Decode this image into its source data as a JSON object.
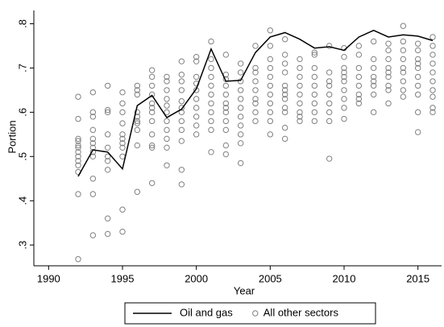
{
  "chart_data": {
    "type": "line",
    "xlabel": "Year",
    "ylabel": "Portion",
    "xlim": [
      1989,
      2016.6
    ],
    "ylim": [
      0.253,
      0.83
    ],
    "xticks": [
      1990,
      1995,
      2000,
      2005,
      2010,
      2015
    ],
    "yticks": [
      {
        "value": 0.3,
        "label": ".3"
      },
      {
        "value": 0.4,
        "label": ".4"
      },
      {
        "value": 0.5,
        "label": ".5"
      },
      {
        "value": 0.6,
        "label": ".6"
      },
      {
        "value": 0.7,
        "label": ".7"
      },
      {
        "value": 0.8,
        "label": ".8"
      }
    ],
    "series": [
      {
        "name": "Oil and gas",
        "type": "line",
        "color": "#000000",
        "x": [
          1992,
          1993,
          1994,
          1995,
          1996,
          1997,
          1998,
          1999,
          2000,
          2001,
          2002,
          2003,
          2004,
          2005,
          2006,
          2007,
          2008,
          2009,
          2010,
          2011,
          2012,
          2013,
          2014,
          2015,
          2016
        ],
        "values": [
          0.455,
          0.515,
          0.51,
          0.472,
          0.615,
          0.638,
          0.588,
          0.607,
          0.653,
          0.743,
          0.67,
          0.672,
          0.735,
          0.77,
          0.78,
          0.765,
          0.745,
          0.748,
          0.74,
          0.77,
          0.785,
          0.77,
          0.775,
          0.772,
          0.762
        ]
      },
      {
        "name": "All other sectors",
        "type": "scatter",
        "color": "#808080",
        "x": [
          1992,
          1992,
          1992,
          1992,
          1992,
          1992,
          1992,
          1992,
          1992,
          1992,
          1992,
          1992,
          1992,
          1993,
          1993,
          1993,
          1993,
          1993,
          1993,
          1993,
          1993,
          1993,
          1993,
          1993,
          1993,
          1994,
          1994,
          1994,
          1994,
          1994,
          1994,
          1994,
          1994,
          1994,
          1994,
          1995,
          1995,
          1995,
          1995,
          1995,
          1995,
          1995,
          1995,
          1995,
          1995,
          1995,
          1996,
          1996,
          1996,
          1996,
          1996,
          1996,
          1996,
          1996,
          1996,
          1996,
          1997,
          1997,
          1997,
          1997,
          1997,
          1997,
          1997,
          1997,
          1997,
          1997,
          1997,
          1997,
          1998,
          1998,
          1998,
          1998,
          1998,
          1998,
          1998,
          1998,
          1998,
          1998,
          1998,
          1999,
          1999,
          1999,
          1999,
          1999,
          1999,
          1999,
          1999,
          1999,
          1999,
          1999,
          1999,
          2000,
          2000,
          2000,
          2000,
          2000,
          2000,
          2000,
          2000,
          2000,
          2000,
          2001,
          2001,
          2001,
          2001,
          2001,
          2001,
          2001,
          2001,
          2001,
          2001,
          2001,
          2002,
          2002,
          2002,
          2002,
          2002,
          2002,
          2002,
          2002,
          2002,
          2002,
          2002,
          2002,
          2003,
          2003,
          2003,
          2003,
          2003,
          2003,
          2003,
          2003,
          2003,
          2003,
          2003,
          2004,
          2004,
          2004,
          2004,
          2004,
          2004,
          2004,
          2004,
          2004,
          2005,
          2005,
          2005,
          2005,
          2005,
          2005,
          2005,
          2005,
          2005,
          2005,
          2005,
          2006,
          2006,
          2006,
          2006,
          2006,
          2006,
          2006,
          2006,
          2006,
          2006,
          2006,
          2006,
          2007,
          2007,
          2007,
          2007,
          2007,
          2007,
          2007,
          2007,
          2007,
          2008,
          2008,
          2008,
          2008,
          2008,
          2008,
          2008,
          2008,
          2008,
          2009,
          2009,
          2009,
          2009,
          2009,
          2009,
          2009,
          2009,
          2009,
          2010,
          2010,
          2010,
          2010,
          2010,
          2010,
          2010,
          2010,
          2010,
          2010,
          2011,
          2011,
          2011,
          2011,
          2011,
          2011,
          2011,
          2011,
          2012,
          2012,
          2012,
          2012,
          2012,
          2012,
          2012,
          2012,
          2013,
          2013,
          2013,
          2013,
          2013,
          2013,
          2013,
          2013,
          2013,
          2014,
          2014,
          2014,
          2014,
          2014,
          2014,
          2014,
          2014,
          2014,
          2015,
          2015,
          2015,
          2015,
          2015,
          2015,
          2015,
          2015,
          2015,
          2015,
          2016,
          2016,
          2016,
          2016,
          2016,
          2016,
          2016,
          2016,
          2016,
          2016
        ],
        "values": [
          0.635,
          0.585,
          0.54,
          0.535,
          0.525,
          0.52,
          0.51,
          0.5,
          0.49,
          0.48,
          0.465,
          0.415,
          0.268,
          0.645,
          0.6,
          0.59,
          0.56,
          0.54,
          0.53,
          0.52,
          0.51,
          0.5,
          0.45,
          0.415,
          0.322,
          0.66,
          0.605,
          0.6,
          0.55,
          0.52,
          0.5,
          0.49,
          0.47,
          0.36,
          0.325,
          0.645,
          0.62,
          0.6,
          0.575,
          0.55,
          0.54,
          0.53,
          0.52,
          0.5,
          0.38,
          0.33,
          0.66,
          0.65,
          0.64,
          0.6,
          0.59,
          0.58,
          0.575,
          0.56,
          0.525,
          0.42,
          0.695,
          0.68,
          0.66,
          0.64,
          0.62,
          0.61,
          0.6,
          0.58,
          0.55,
          0.525,
          0.52,
          0.44,
          0.68,
          0.67,
          0.65,
          0.63,
          0.615,
          0.6,
          0.58,
          0.56,
          0.54,
          0.52,
          0.48,
          0.715,
          0.685,
          0.67,
          0.65,
          0.625,
          0.61,
          0.6,
          0.58,
          0.56,
          0.535,
          0.47,
          0.437,
          0.725,
          0.715,
          0.68,
          0.665,
          0.65,
          0.63,
          0.61,
          0.59,
          0.57,
          0.55,
          0.76,
          0.72,
          0.7,
          0.68,
          0.66,
          0.64,
          0.62,
          0.6,
          0.58,
          0.56,
          0.51,
          0.73,
          0.685,
          0.675,
          0.66,
          0.64,
          0.62,
          0.61,
          0.6,
          0.58,
          0.56,
          0.525,
          0.505,
          0.71,
          0.69,
          0.67,
          0.65,
          0.63,
          0.61,
          0.59,
          0.57,
          0.55,
          0.53,
          0.485,
          0.75,
          0.7,
          0.69,
          0.67,
          0.65,
          0.63,
          0.62,
          0.6,
          0.58,
          0.785,
          0.75,
          0.72,
          0.7,
          0.68,
          0.66,
          0.64,
          0.62,
          0.6,
          0.58,
          0.55,
          0.765,
          0.73,
          0.71,
          0.69,
          0.66,
          0.65,
          0.64,
          0.63,
          0.61,
          0.6,
          0.565,
          0.54,
          0.72,
          0.7,
          0.68,
          0.66,
          0.64,
          0.62,
          0.6,
          0.59,
          0.58,
          0.735,
          0.73,
          0.7,
          0.68,
          0.66,
          0.64,
          0.62,
          0.6,
          0.58,
          0.75,
          0.69,
          0.67,
          0.66,
          0.64,
          0.62,
          0.6,
          0.58,
          0.495,
          0.745,
          0.725,
          0.7,
          0.69,
          0.68,
          0.67,
          0.65,
          0.63,
          0.61,
          0.585,
          0.75,
          0.73,
          0.7,
          0.68,
          0.66,
          0.64,
          0.63,
          0.62,
          0.76,
          0.72,
          0.7,
          0.68,
          0.67,
          0.66,
          0.64,
          0.6,
          0.755,
          0.74,
          0.72,
          0.7,
          0.69,
          0.68,
          0.66,
          0.65,
          0.62,
          0.795,
          0.76,
          0.74,
          0.72,
          0.7,
          0.69,
          0.67,
          0.65,
          0.635,
          0.755,
          0.74,
          0.72,
          0.71,
          0.7,
          0.68,
          0.66,
          0.64,
          0.6,
          0.555,
          0.77,
          0.75,
          0.73,
          0.71,
          0.69,
          0.67,
          0.65,
          0.635,
          0.61,
          0.6
        ]
      }
    ]
  }
}
